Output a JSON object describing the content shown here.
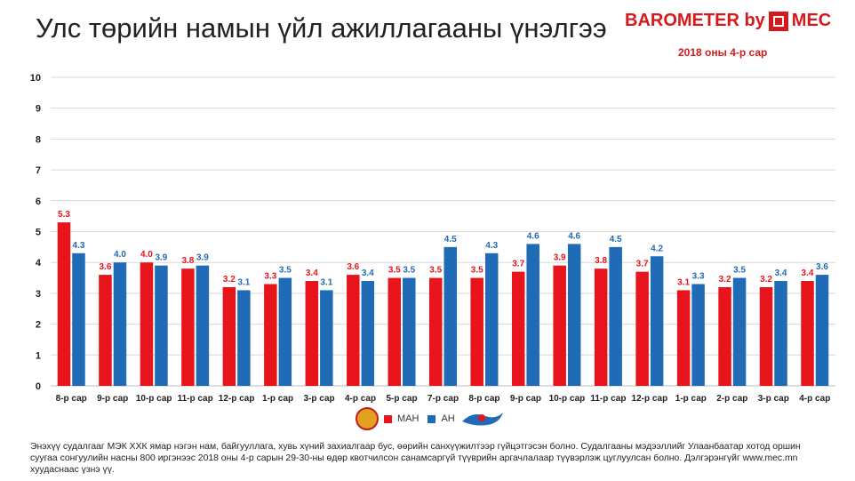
{
  "header": {
    "title": "Улс төрийн намын үйл ажиллагааны үнэлгээ",
    "brand": "BAROMETER by",
    "brand_suffix": "MEC",
    "subtitle": "2018 оны 4-р сар"
  },
  "colors": {
    "man": "#e8141b",
    "an": "#1f6bb6",
    "grid": "#d9d9d9"
  },
  "chart_data": {
    "type": "bar",
    "categories": [
      "8-р сар",
      "9-р сар",
      "10-р сар",
      "11-р сар",
      "12-р сар",
      "1-р сар",
      "3-р сар",
      "4-р сар",
      "5-р сар",
      "7-р сар",
      "8-р сар",
      "9-р сар",
      "10-р сар",
      "11-р сар",
      "12-р сар",
      "1-р сар",
      "2-р сар",
      "3-р сар",
      "4-р сар"
    ],
    "series": [
      {
        "name": "МАН",
        "color": "#e8141b",
        "values": [
          5.3,
          3.6,
          4.0,
          3.8,
          3.2,
          3.3,
          3.4,
          3.6,
          3.5,
          3.5,
          3.5,
          3.7,
          3.9,
          3.8,
          3.7,
          3.1,
          3.2,
          3.2,
          3.4
        ]
      },
      {
        "name": "АН",
        "color": "#1f6bb6",
        "values": [
          4.3,
          4.0,
          3.9,
          3.9,
          3.1,
          3.5,
          3.1,
          3.4,
          3.5,
          4.5,
          4.3,
          4.6,
          4.6,
          4.5,
          4.2,
          3.3,
          3.5,
          3.4,
          3.6
        ]
      }
    ],
    "yticks": [
      "0",
      "1",
      "2",
      "3",
      "4",
      "5",
      "6",
      "7",
      "8",
      "9",
      "10"
    ],
    "ylim": [
      0,
      10
    ],
    "grid": true,
    "legend": "bottom-center"
  },
  "legend": {
    "man": "МАН",
    "an": "АН"
  },
  "footnote": "Энэхүү судалгааг МЭК ХХК ямар нэгэн нам, байгууллага, хувь хүний захиалгаар бус, өөрийн санхүүжилтээр гүйцэтгэсэн болно. Судалгааны мэдээллийг Улаанбаатар хотод оршин суугаа сонгуулийн насны 800 иргэнээс 2018 оны 4-р сарын 29-30-ны өдөр квотчилсон санамсаргүй түүврийн аргачлалаар түүвэрлэж цуглуулсан болно. Дэлгэрэнгүйг www.mec.mn  хуудаснаас үзнэ үү."
}
